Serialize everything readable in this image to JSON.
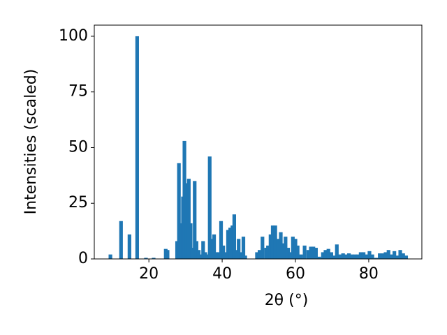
{
  "chart_data": {
    "type": "bar",
    "xlabel": "2θ (°)",
    "ylabel": "Intensities (scaled)",
    "color": "#1f77b4",
    "x": [
      9.5,
      12.4,
      14.7,
      16.8,
      19.2,
      21.3,
      24.6,
      25.1,
      27.7,
      28.2,
      28.8,
      29.3,
      29.7,
      30.3,
      30.9,
      31.4,
      31.9,
      32.5,
      33.0,
      33.6,
      34.2,
      34.8,
      35.4,
      36.0,
      36.6,
      37.2,
      37.8,
      38.4,
      39.0,
      39.7,
      40.3,
      41.0,
      41.6,
      42.2,
      42.8,
      43.3,
      43.9,
      44.5,
      45.2,
      45.8,
      46.3,
      49.5,
      50.2,
      51.0,
      52.0,
      52.5,
      53.2,
      53.8,
      54.5,
      55.2,
      56.0,
      56.6,
      57.3,
      58.0,
      58.6,
      59.3,
      60.0,
      60.6,
      61.5,
      62.5,
      63.5,
      64.2,
      64.9,
      65.6,
      66.5,
      67.5,
      68.2,
      69.0,
      69.8,
      70.6,
      71.3,
      72.2,
      73.0,
      73.8,
      74.6,
      75.4,
      76.2,
      77.0,
      77.8,
      78.6,
      79.4,
      80.2,
      81.0,
      82.0,
      83.0,
      83.8,
      84.6,
      85.4,
      86.2,
      87.0,
      87.8,
      88.6,
      89.4,
      90.2
    ],
    "values": [
      2,
      17,
      11,
      100,
      0.5,
      0.5,
      4.5,
      4,
      8,
      43,
      16,
      28,
      53,
      34,
      36,
      16,
      5,
      35,
      8,
      4,
      2,
      8,
      3,
      2,
      46,
      9,
      11,
      3,
      3,
      17,
      6,
      3,
      13,
      14,
      15,
      20,
      4,
      9,
      3,
      10,
      1.5,
      3,
      4,
      10,
      5,
      6,
      11,
      15,
      15,
      9,
      12,
      7,
      10,
      5,
      3,
      10,
      9,
      6,
      2,
      6,
      4,
      5.5,
      5.5,
      5,
      1,
      3,
      4,
      4.5,
      3,
      1.5,
      6.5,
      2,
      2.5,
      2,
      2.5,
      2,
      2,
      2,
      3,
      3,
      2,
      3.5,
      2,
      0.5,
      2.5,
      2.5,
      3,
      4,
      2,
      3.5,
      1.5,
      4,
      2.5,
      1.5
    ],
    "xlim": [
      5.1,
      94.5
    ],
    "xticks": [
      20,
      40,
      60,
      80
    ],
    "ylim": [
      0,
      105
    ],
    "yticks": [
      0,
      25,
      50,
      75,
      100
    ]
  }
}
